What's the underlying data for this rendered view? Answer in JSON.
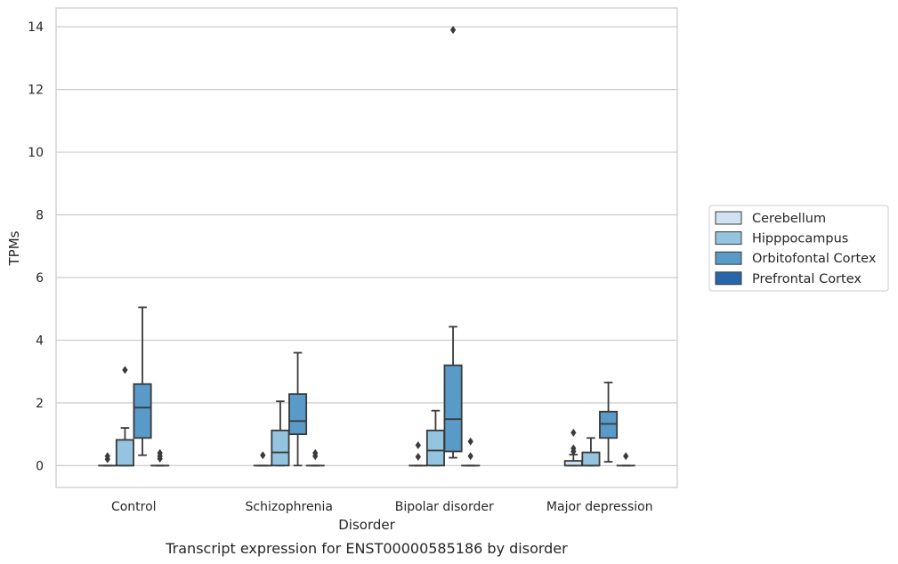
{
  "chart_data": {
    "type": "box",
    "xlabel": "Disorder",
    "ylabel": "TPMs",
    "caption": "Transcript expression for ENST00000585186 by disorder",
    "ylim": [
      -0.7,
      14.6
    ],
    "yticks": [
      0,
      2,
      4,
      6,
      8,
      10,
      12,
      14
    ],
    "grid": "horizontal",
    "legend_position": "right",
    "categories": [
      "Control",
      "Schizophrenia",
      "Bipolar disorder",
      "Major depression"
    ],
    "series": [
      {
        "name": "Cerebellum",
        "color": "#d0e1f2",
        "boxes": [
          {
            "q1": 0,
            "median": 0,
            "q3": 0,
            "whisker_low": 0,
            "whisker_high": 0,
            "outliers": [
              0.2,
              0.3
            ]
          },
          {
            "q1": 0,
            "median": 0,
            "q3": 0,
            "whisker_low": 0,
            "whisker_high": 0,
            "outliers": [
              0.33
            ]
          },
          {
            "q1": 0,
            "median": 0,
            "q3": 0,
            "whisker_low": 0,
            "whisker_high": 0,
            "outliers": [
              0.28,
              0.65
            ]
          },
          {
            "q1": 0,
            "median": 0,
            "q3": 0.15,
            "whisker_low": 0,
            "whisker_high": 0.35,
            "outliers": [
              0.45,
              0.55,
              1.05
            ]
          }
        ]
      },
      {
        "name": "Hipppocampus",
        "color": "#94c4df",
        "boxes": [
          {
            "q1": 0,
            "median": 0,
            "q3": 0.82,
            "whisker_low": 0,
            "whisker_high": 1.2,
            "outliers": [
              3.05
            ]
          },
          {
            "q1": 0,
            "median": 0.42,
            "q3": 1.12,
            "whisker_low": 0,
            "whisker_high": 2.05,
            "outliers": []
          },
          {
            "q1": 0,
            "median": 0.48,
            "q3": 1.12,
            "whisker_low": 0,
            "whisker_high": 1.75,
            "outliers": []
          },
          {
            "q1": 0,
            "median": 0,
            "q3": 0.42,
            "whisker_low": 0,
            "whisker_high": 0.88,
            "outliers": []
          }
        ]
      },
      {
        "name": "Orbitofontal Cortex",
        "color": "#5a9ac8",
        "boxes": [
          {
            "q1": 0.88,
            "median": 1.85,
            "q3": 2.6,
            "whisker_low": 0.33,
            "whisker_high": 5.05,
            "outliers": []
          },
          {
            "q1": 1.0,
            "median": 1.42,
            "q3": 2.28,
            "whisker_low": 0,
            "whisker_high": 3.6,
            "outliers": []
          },
          {
            "q1": 0.45,
            "median": 1.48,
            "q3": 3.2,
            "whisker_low": 0.25,
            "whisker_high": 4.43,
            "outliers": [
              13.9
            ]
          },
          {
            "q1": 0.88,
            "median": 1.33,
            "q3": 1.72,
            "whisker_low": 0.12,
            "whisker_high": 2.65,
            "outliers": []
          }
        ]
      },
      {
        "name": "Prefrontal Cortex",
        "color": "#2666a8",
        "boxes": [
          {
            "q1": 0,
            "median": 0,
            "q3": 0,
            "whisker_low": 0,
            "whisker_high": 0,
            "outliers": [
              0.22,
              0.3,
              0.4
            ]
          },
          {
            "q1": 0,
            "median": 0,
            "q3": 0,
            "whisker_low": 0,
            "whisker_high": 0,
            "outliers": [
              0.3,
              0.4
            ]
          },
          {
            "q1": 0,
            "median": 0,
            "q3": 0,
            "whisker_low": 0,
            "whisker_high": 0,
            "outliers": [
              0.3,
              0.77
            ]
          },
          {
            "q1": 0,
            "median": 0,
            "q3": 0,
            "whisker_low": 0,
            "whisker_high": 0,
            "outliers": [
              0.3
            ]
          }
        ]
      }
    ]
  }
}
